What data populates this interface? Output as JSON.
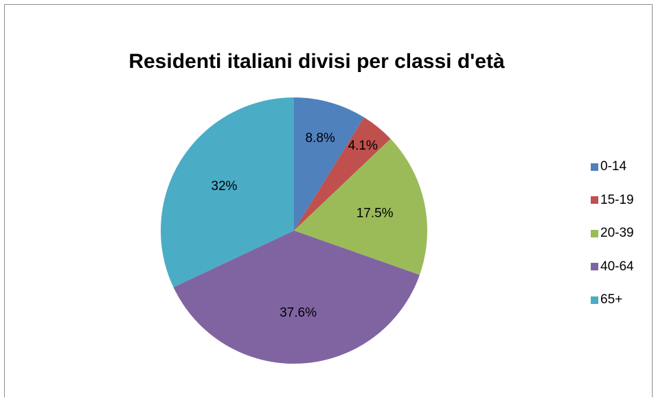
{
  "chart_data": {
    "type": "pie",
    "title": "Residenti italiani divisi per classi d'età",
    "categories": [
      "0-14",
      "15-19",
      "20-39",
      "40-64",
      "65+"
    ],
    "values": [
      8.8,
      4.1,
      17.5,
      37.6,
      32
    ],
    "labels": [
      "8.8%",
      "4.1%",
      "17.5%",
      "37.6%",
      "32%"
    ],
    "colors": [
      "#4F81BD",
      "#C0504D",
      "#9BBB59",
      "#8064A2",
      "#4BACC6"
    ],
    "legend_position": "right",
    "start_angle": "12 o'clock",
    "direction": "clockwise"
  }
}
